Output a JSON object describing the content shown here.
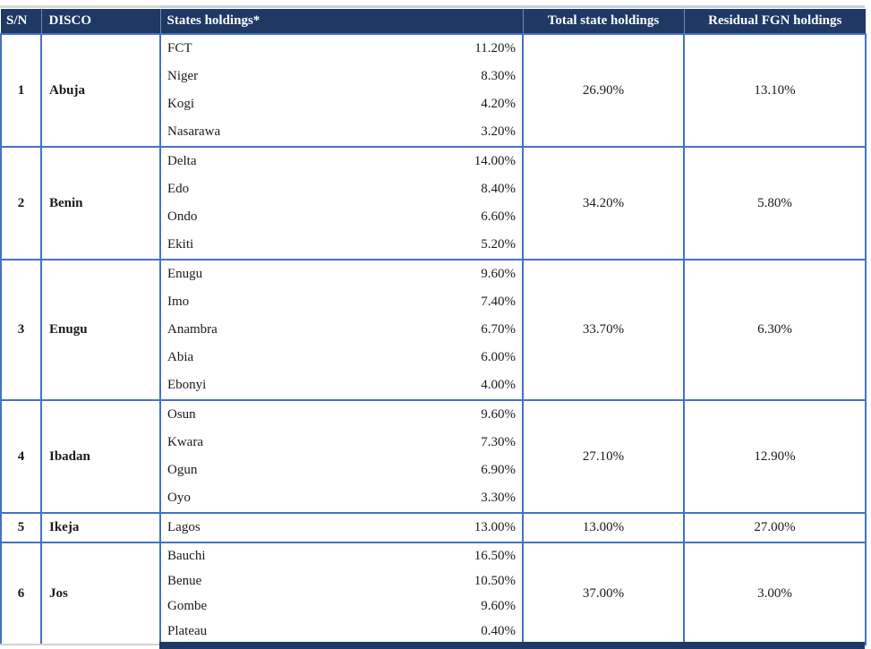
{
  "colors": {
    "header_bg": "#1F3864",
    "border": "#4472C4",
    "header_text": "#FFFFFF",
    "body_text": "#1A1A1A"
  },
  "table": {
    "columns": {
      "sn": "S/N",
      "disco": "DISCO",
      "states": "States holdings*",
      "total": "Total state holdings",
      "residual": "Residual FGN holdings"
    },
    "rows": [
      {
        "sn": "1",
        "disco": "Abuja",
        "states": [
          {
            "name": "FCT",
            "value": "11.20%"
          },
          {
            "name": "Niger",
            "value": "8.30%"
          },
          {
            "name": "Kogi",
            "value": "4.20%"
          },
          {
            "name": "Nasarawa",
            "value": "3.20%"
          }
        ],
        "total": "26.90%",
        "residual": "13.10%"
      },
      {
        "sn": "2",
        "disco": "Benin",
        "states": [
          {
            "name": "Delta",
            "value": "14.00%"
          },
          {
            "name": "Edo",
            "value": "8.40%"
          },
          {
            "name": "Ondo",
            "value": "6.60%"
          },
          {
            "name": "Ekiti",
            "value": "5.20%"
          }
        ],
        "total": "34.20%",
        "residual": "5.80%"
      },
      {
        "sn": "3",
        "disco": "Enugu",
        "states": [
          {
            "name": "Enugu",
            "value": "9.60%"
          },
          {
            "name": "Imo",
            "value": "7.40%"
          },
          {
            "name": "Anambra",
            "value": "6.70%"
          },
          {
            "name": "Abia",
            "value": "6.00%"
          },
          {
            "name": "Ebonyi",
            "value": "4.00%"
          }
        ],
        "total": "33.70%",
        "residual": "6.30%"
      },
      {
        "sn": "4",
        "disco": "Ibadan",
        "states": [
          {
            "name": "Osun",
            "value": "9.60%"
          },
          {
            "name": "Kwara",
            "value": "7.30%"
          },
          {
            "name": "Ogun",
            "value": "6.90%"
          },
          {
            "name": "Oyo",
            "value": "3.30%"
          }
        ],
        "total": "27.10%",
        "residual": "12.90%"
      },
      {
        "sn": "5",
        "disco": "Ikeja",
        "states": [
          {
            "name": "Lagos",
            "value": "13.00%"
          }
        ],
        "total": "13.00%",
        "residual": "27.00%"
      },
      {
        "sn": "6",
        "disco": "Jos",
        "states": [
          {
            "name": "Bauchi",
            "value": "16.50%"
          },
          {
            "name": "Benue",
            "value": "10.50%"
          },
          {
            "name": "Gombe",
            "value": "9.60%"
          },
          {
            "name": "Plateau",
            "value": "0.40%"
          }
        ],
        "total": "37.00%",
        "residual": "3.00%"
      }
    ]
  }
}
